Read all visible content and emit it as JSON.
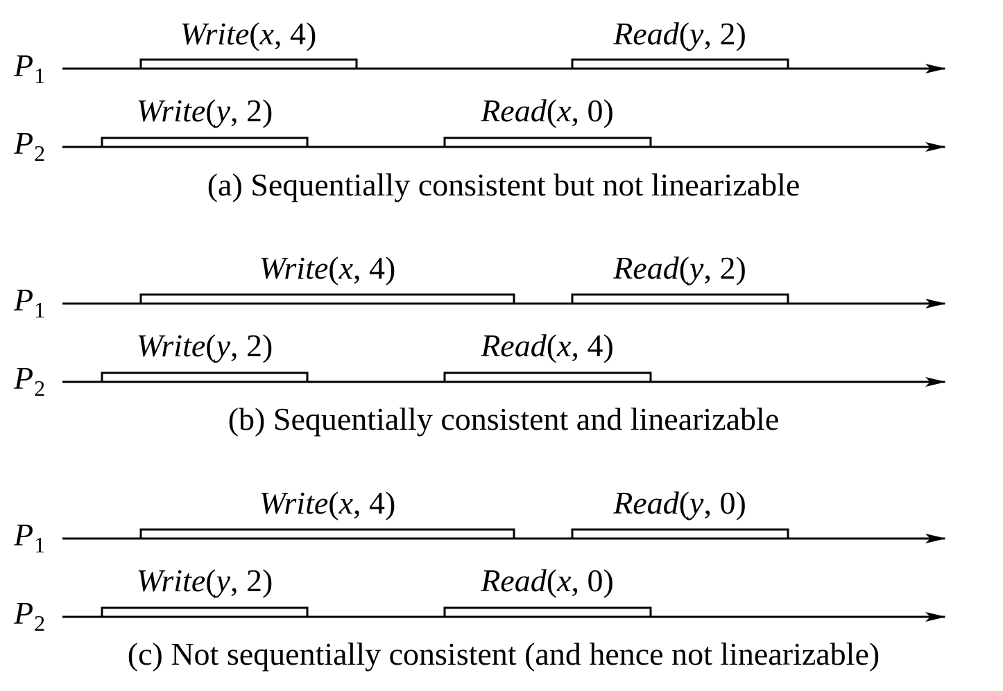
{
  "panels": [
    {
      "caption": "(a) Sequentially consistent but not linearizable",
      "p1": {
        "label": "P",
        "sub": "1",
        "ops": [
          {
            "name": "Write",
            "var": "x",
            "val": "4"
          },
          {
            "name": "Read",
            "var": "y",
            "val": "2"
          }
        ]
      },
      "p2": {
        "label": "P",
        "sub": "2",
        "ops": [
          {
            "name": "Write",
            "var": "y",
            "val": "2"
          },
          {
            "name": "Read",
            "var": "x",
            "val": "0"
          }
        ]
      }
    },
    {
      "caption": "(b) Sequentially consistent and linearizable",
      "p1": {
        "label": "P",
        "sub": "1",
        "ops": [
          {
            "name": "Write",
            "var": "x",
            "val": "4"
          },
          {
            "name": "Read",
            "var": "y",
            "val": "2"
          }
        ]
      },
      "p2": {
        "label": "P",
        "sub": "2",
        "ops": [
          {
            "name": "Write",
            "var": "y",
            "val": "2"
          },
          {
            "name": "Read",
            "var": "x",
            "val": "4"
          }
        ]
      }
    },
    {
      "caption": "(c) Not sequentially consistent (and hence not linearizable)",
      "p1": {
        "label": "P",
        "sub": "1",
        "ops": [
          {
            "name": "Write",
            "var": "x",
            "val": "4"
          },
          {
            "name": "Read",
            "var": "y",
            "val": "0"
          }
        ]
      },
      "p2": {
        "label": "P",
        "sub": "2",
        "ops": [
          {
            "name": "Write",
            "var": "y",
            "val": "2"
          },
          {
            "name": "Read",
            "var": "x",
            "val": "0"
          }
        ]
      }
    }
  ]
}
